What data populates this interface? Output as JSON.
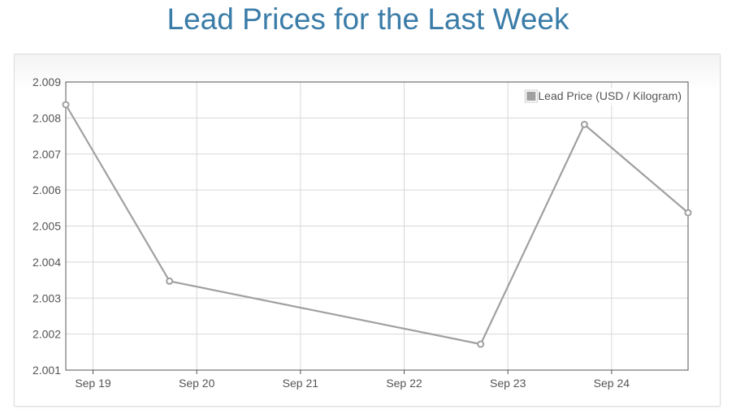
{
  "page": {
    "title": "Lead Prices for the Last Week"
  },
  "chart_data": {
    "type": "line",
    "title": "",
    "xlabel": "",
    "ylabel": "",
    "x_ticks": [
      "Sep 19",
      "Sep 20",
      "Sep 21",
      "Sep 22",
      "Sep 23",
      "Sep 24"
    ],
    "y_ticks": [
      "2.001",
      "2.002",
      "2.003",
      "2.004",
      "2.005",
      "2.006",
      "2.007",
      "2.008",
      "2.009"
    ],
    "ylim": [
      2.001,
      2.009
    ],
    "xlim": [
      "Sep 18 17:42",
      "Sep 24 17:42"
    ],
    "grid": true,
    "legend_position": "top-right",
    "series": [
      {
        "name": "Lead Price (USD / Kilogram)",
        "color": "#a0a0a0",
        "points": [
          {
            "x": "Sep 18 17:42",
            "y": 2.00837
          },
          {
            "x": "Sep 19 17:42",
            "y": 2.00347
          },
          {
            "x": "Sep 22 17:42",
            "y": 2.00172
          },
          {
            "x": "Sep 23 17:42",
            "y": 2.00782
          },
          {
            "x": "Sep 24 17:42",
            "y": 2.00537
          }
        ]
      }
    ]
  }
}
